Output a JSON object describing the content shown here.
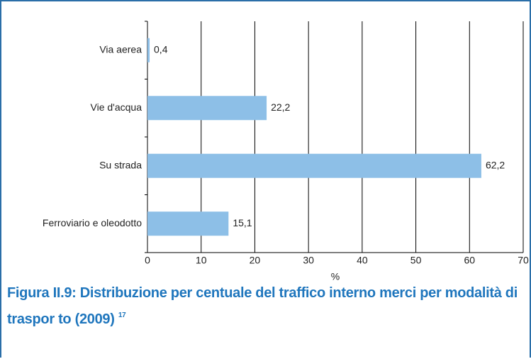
{
  "chart_data": {
    "type": "hbar",
    "title": "Figura II.9: Distribuzione per centuale del traffico interno merci per modalità di traspor to (2009)",
    "title_note": "17",
    "xlabel": "%",
    "categories": [
      "Via aerea",
      "Vie d'acqua",
      "Su strada",
      "Ferroviario e oleodotto"
    ],
    "values": [
      0.4,
      22.2,
      62.2,
      15.1
    ],
    "value_labels": [
      "0,4",
      "22,2",
      "62,2",
      "15,1"
    ],
    "color": "#8dbfe7",
    "xlim": [
      0,
      70
    ],
    "xticks": [
      0,
      10,
      20,
      30,
      40,
      50,
      60,
      70
    ],
    "grid": true
  }
}
